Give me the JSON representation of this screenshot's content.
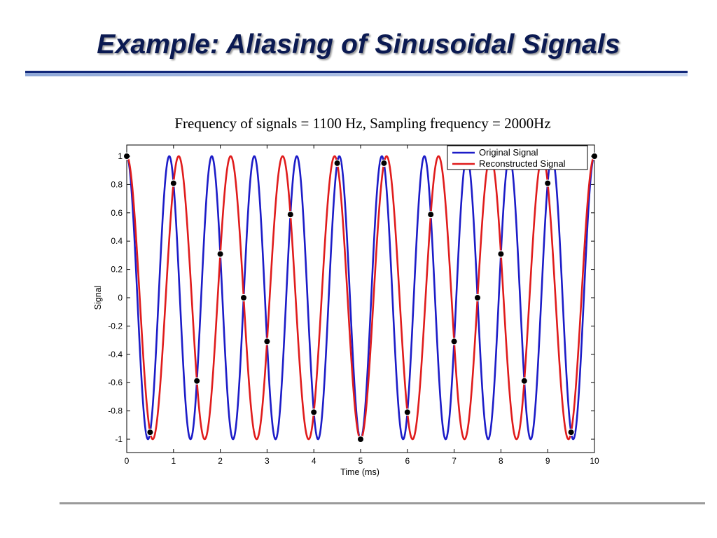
{
  "slide": {
    "title": "Example: Aliasing of Sinusoidal Signals"
  },
  "chart_data": {
    "type": "line",
    "title": "Frequency of signals = 1100 Hz, Sampling frequency = 2000Hz",
    "xlabel": "Time (ms)",
    "ylabel": "Signal",
    "xlim": [
      0,
      10
    ],
    "ylim": [
      -1,
      1
    ],
    "x_ticks": [
      "0",
      "1",
      "2",
      "3",
      "4",
      "5",
      "6",
      "7",
      "8",
      "9",
      "10"
    ],
    "y_ticks": [
      "1",
      "0.8",
      "0.6",
      "0.4",
      "0.2",
      "0",
      "-0.2",
      "-0.4",
      "-0.6",
      "-0.8",
      "-1"
    ],
    "grid": false,
    "legend_position": "top-right",
    "series": [
      {
        "name": "Original Signal",
        "color": "#1c1cc8",
        "function": "cos",
        "frequency_hz": 1100
      },
      {
        "name": "Reconstructed Signal",
        "color": "#e01c1c",
        "function": "cos",
        "frequency_hz": 900
      }
    ],
    "samples": {
      "color": "#000000",
      "x": [
        0,
        0.5,
        1,
        1.5,
        2,
        2.5,
        3,
        3.5,
        4,
        4.5,
        5,
        5.5,
        6,
        6.5,
        7,
        7.5,
        8,
        8.5,
        9,
        9.5,
        10
      ],
      "y": [
        1,
        -0.951,
        0.809,
        -0.588,
        0.309,
        0,
        -0.309,
        0.588,
        -0.809,
        0.951,
        -1,
        0.951,
        -0.809,
        0.588,
        -0.309,
        0,
        0.309,
        -0.588,
        0.809,
        -0.951,
        1
      ]
    }
  }
}
